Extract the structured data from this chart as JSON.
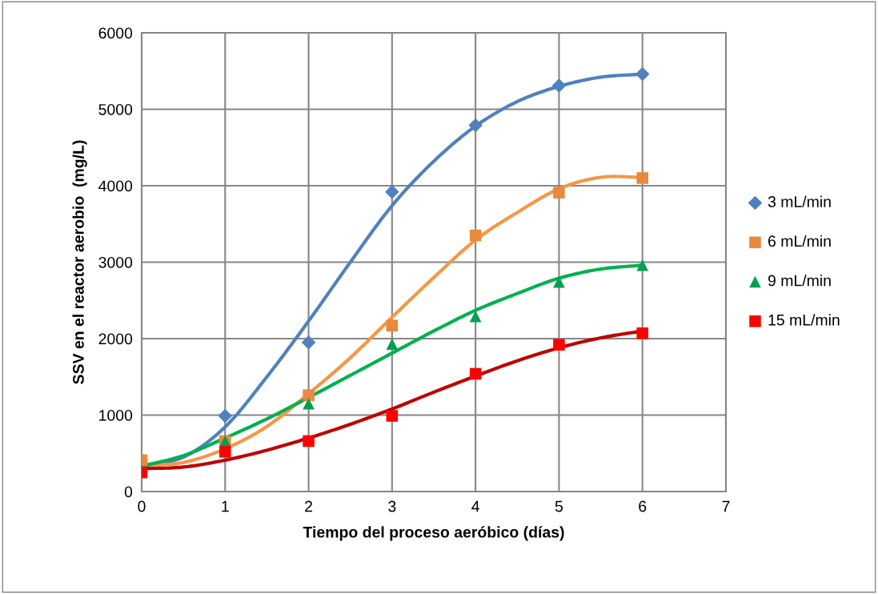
{
  "chart_data": {
    "type": "scatter",
    "xlabel": "Tiempo del proceso aeróbico (días)",
    "ylabel": "SSV en el reactor aerobio  (mg/L)",
    "x": [
      0,
      1,
      2,
      3,
      4,
      5,
      6
    ],
    "xlim": [
      0,
      7
    ],
    "xticks": [
      0,
      1,
      2,
      3,
      4,
      5,
      6,
      7
    ],
    "ylim": [
      0,
      6000
    ],
    "yticks": [
      0,
      1000,
      2000,
      3000,
      4000,
      5000,
      6000
    ],
    "grid": true,
    "legend": "right",
    "series": [
      {
        "name": "3 mL/min",
        "color": "#4f81bd",
        "marker": "diamond",
        "values": [
          null,
          990,
          1950,
          3920,
          4790,
          5310,
          5460
        ]
      },
      {
        "name": "6 mL/min",
        "color": "#e8893e",
        "marker": "square",
        "values": [
          410,
          660,
          1260,
          2170,
          3350,
          3910,
          4100
        ]
      },
      {
        "name": "9 mL/min",
        "color": "#00a050",
        "marker": "triangle",
        "values": [
          null,
          660,
          1150,
          1930,
          2290,
          2740,
          2960
        ]
      },
      {
        "name": "15 mL/min",
        "color": "#ff0000",
        "marker": "square",
        "values": [
          250,
          520,
          660,
          990,
          1540,
          1920,
          2070
        ]
      },
      {
        "type": "line",
        "color": "#4f81bd",
        "x": [
          0,
          0.5,
          1,
          1.5,
          2,
          2.5,
          3,
          3.5,
          4,
          4.5,
          5,
          5.5,
          6
        ],
        "values": [
          340,
          450,
          845,
          1500,
          2230,
          3000,
          3740,
          4320,
          4780,
          5100,
          5300,
          5420,
          5460
        ]
      },
      {
        "type": "line",
        "color": "#f79646",
        "x": [
          0,
          0.5,
          1,
          1.5,
          2,
          2.5,
          3,
          3.5,
          4,
          4.5,
          5,
          5.5,
          6
        ],
        "values": [
          340,
          380,
          560,
          850,
          1280,
          1750,
          2280,
          2800,
          3290,
          3650,
          3960,
          4110,
          4110
        ]
      },
      {
        "type": "line",
        "color": "#00b050",
        "x": [
          0,
          0.5,
          1,
          1.5,
          2,
          2.5,
          3,
          3.5,
          4,
          4.5,
          5,
          5.5,
          6
        ],
        "values": [
          330,
          470,
          700,
          950,
          1230,
          1520,
          1810,
          2100,
          2370,
          2590,
          2790,
          2910,
          2960
        ]
      },
      {
        "type": "line",
        "color": "#c00000",
        "x": [
          0,
          0.5,
          1,
          1.5,
          2,
          2.5,
          3,
          3.5,
          4,
          4.5,
          5,
          5.5,
          6
        ],
        "values": [
          300,
          320,
          410,
          540,
          700,
          880,
          1080,
          1300,
          1510,
          1710,
          1880,
          2010,
          2100
        ]
      }
    ]
  }
}
